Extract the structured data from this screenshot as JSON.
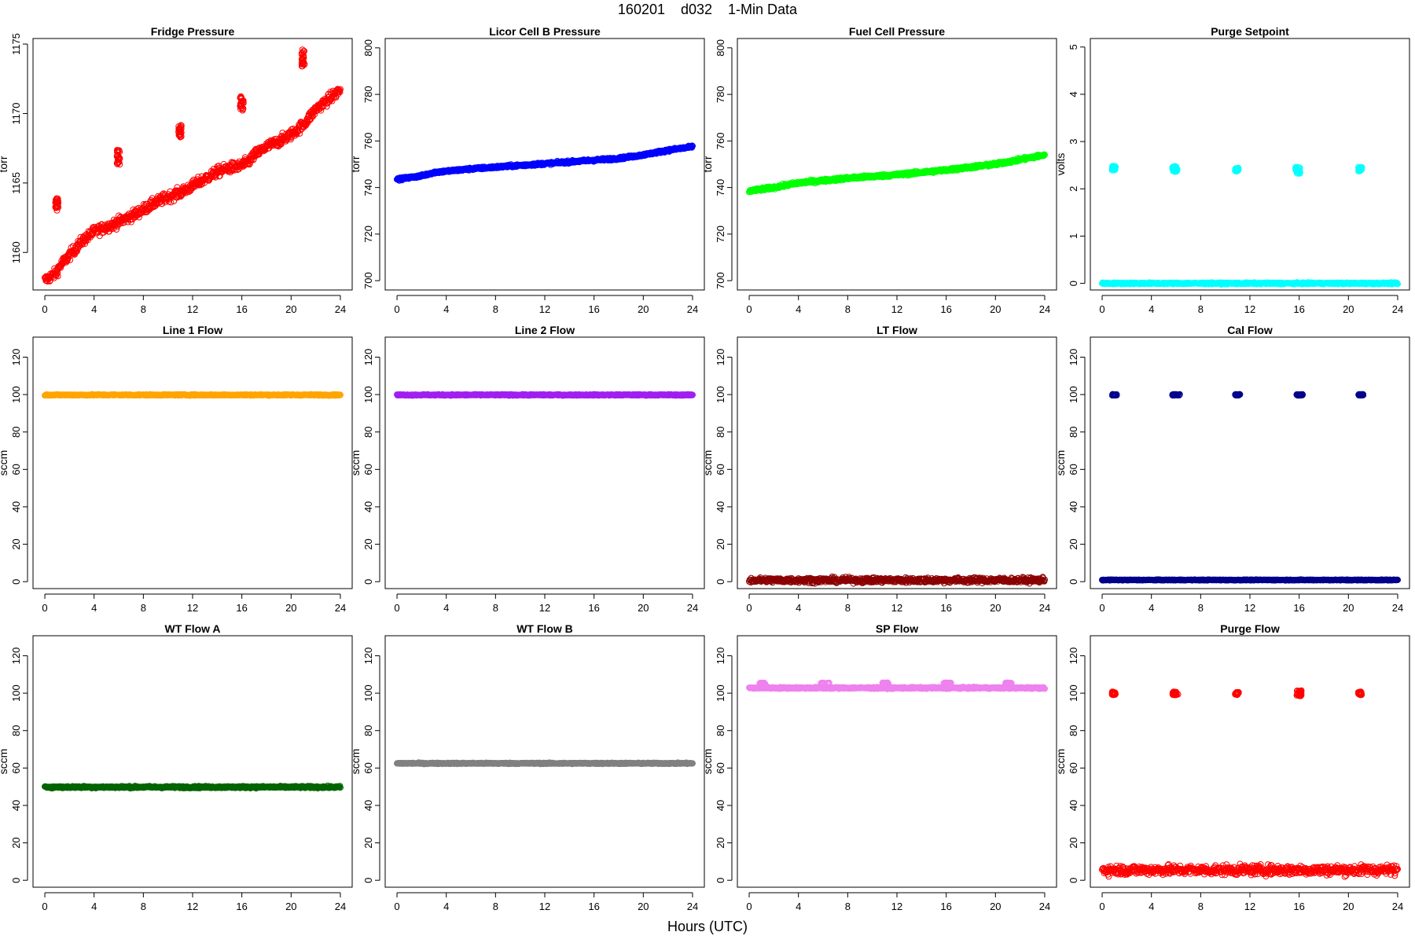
{
  "figure": {
    "title": "160201    d032    1-Min Data",
    "xlabel": "Hours (UTC)"
  },
  "chart_data": [
    {
      "type": "scatter",
      "title": "Fridge Pressure",
      "ylabel": "torr",
      "xlim": [
        -0.96,
        24.96
      ],
      "ylim": [
        1157.3,
        1175.4
      ],
      "xticks": [
        0,
        4,
        8,
        12,
        16,
        20,
        24
      ],
      "yticks": [
        1160,
        1165,
        1170,
        1175
      ],
      "color": "#ff0000",
      "marker": "open-circle",
      "series": [
        {
          "kind": "trend",
          "points": [
            [
              0,
              1158.0
            ],
            [
              0.9,
              1158.5
            ],
            [
              1.2,
              1159.0
            ],
            [
              2,
              1159.8
            ],
            [
              3,
              1160.8
            ],
            [
              4,
              1161.5
            ],
            [
              5.2,
              1161.9
            ],
            [
              6,
              1162.2
            ],
            [
              7,
              1162.6
            ],
            [
              8,
              1163.1
            ],
            [
              9,
              1163.6
            ],
            [
              10,
              1164.0
            ],
            [
              11,
              1164.3
            ],
            [
              12,
              1164.8
            ],
            [
              13,
              1165.3
            ],
            [
              14,
              1165.8
            ],
            [
              15,
              1166.1
            ],
            [
              15.8,
              1166.2
            ],
            [
              16.5,
              1166.5
            ],
            [
              17,
              1167.0
            ],
            [
              18,
              1167.6
            ],
            [
              19,
              1168.0
            ],
            [
              20,
              1168.5
            ],
            [
              21,
              1169.2
            ],
            [
              22,
              1170.3
            ],
            [
              23,
              1171.0
            ],
            [
              24,
              1171.7
            ]
          ],
          "spread": 0.35
        },
        {
          "kind": "cluster",
          "x": [
            0.85,
            1.1
          ],
          "y": [
            1163.0,
            1163.9
          ]
        },
        {
          "kind": "cluster",
          "x": [
            5.85,
            6.1
          ],
          "y": [
            1166.3,
            1167.4
          ]
        },
        {
          "kind": "cluster",
          "x": [
            10.85,
            11.1
          ],
          "y": [
            1168.3,
            1169.2
          ]
        },
        {
          "kind": "cluster",
          "x": [
            15.85,
            16.2
          ],
          "y": [
            1170.1,
            1171.3
          ]
        },
        {
          "kind": "cluster",
          "x": [
            20.85,
            21.1
          ],
          "y": [
            1173.4,
            1174.6
          ]
        }
      ]
    },
    {
      "type": "scatter",
      "title": "Licor Cell B Pressure",
      "ylabel": "torr",
      "xlim": [
        -0.96,
        24.96
      ],
      "ylim": [
        696,
        804
      ],
      "xticks": [
        0,
        4,
        8,
        12,
        16,
        20,
        24
      ],
      "yticks": [
        700,
        720,
        740,
        760,
        780,
        800
      ],
      "color": "#0000ff",
      "marker": "open-circle",
      "series": [
        {
          "kind": "trend",
          "points": [
            [
              0,
              743.5
            ],
            [
              2,
              745
            ],
            [
              3,
              746.5
            ],
            [
              6,
              748
            ],
            [
              10,
              749.5
            ],
            [
              14,
              751
            ],
            [
              18,
              752.5
            ],
            [
              20,
              754
            ],
            [
              22,
              756
            ],
            [
              24,
              757.5
            ]
          ],
          "spread": 0.5
        }
      ]
    },
    {
      "type": "scatter",
      "title": "Fuel Cell Pressure",
      "ylabel": "torr",
      "xlim": [
        -0.96,
        24.96
      ],
      "ylim": [
        696,
        804
      ],
      "xticks": [
        0,
        4,
        8,
        12,
        16,
        20,
        24
      ],
      "yticks": [
        700,
        720,
        740,
        760,
        780,
        800
      ],
      "color": "#00ff00",
      "marker": "open-circle",
      "series": [
        {
          "kind": "trend",
          "points": [
            [
              0,
              738.5
            ],
            [
              2,
              740
            ],
            [
              4,
              742
            ],
            [
              8,
              744
            ],
            [
              12,
              745.5
            ],
            [
              16,
              747.5
            ],
            [
              20,
              750
            ],
            [
              24,
              754
            ]
          ],
          "spread": 0.6
        }
      ]
    },
    {
      "type": "scatter",
      "title": "Purge Setpoint",
      "ylabel": "volts",
      "xlim": [
        -0.96,
        24.96
      ],
      "ylim": [
        -0.14,
        5.18
      ],
      "xticks": [
        0,
        4,
        8,
        12,
        16,
        20,
        24
      ],
      "yticks": [
        0,
        1,
        2,
        3,
        4,
        5
      ],
      "color": "#00ffff",
      "marker": "open-circle",
      "series": [
        {
          "kind": "band",
          "x": [
            0,
            24
          ],
          "y": 0,
          "spread": 0.015
        },
        {
          "kind": "cluster",
          "x": [
            0.8,
            1.1
          ],
          "y": [
            2.38,
            2.48
          ]
        },
        {
          "kind": "cluster",
          "x": [
            5.7,
            6.1
          ],
          "y": [
            2.35,
            2.48
          ]
        },
        {
          "kind": "cluster",
          "x": [
            10.8,
            11.1
          ],
          "y": [
            2.37,
            2.45
          ]
        },
        {
          "kind": "cluster",
          "x": [
            15.7,
            16.1
          ],
          "y": [
            2.32,
            2.46
          ]
        },
        {
          "kind": "cluster",
          "x": [
            20.8,
            21.1
          ],
          "y": [
            2.37,
            2.46
          ]
        }
      ]
    },
    {
      "type": "scatter",
      "title": "Line 1 Flow",
      "ylabel": "sccm",
      "xlim": [
        -0.96,
        24.96
      ],
      "ylim": [
        -3.7,
        130.7
      ],
      "xticks": [
        0,
        4,
        8,
        12,
        16,
        20,
        24
      ],
      "yticks": [
        0,
        20,
        40,
        60,
        80,
        100,
        120
      ],
      "color": "#ffa500",
      "marker": "open-circle",
      "series": [
        {
          "kind": "band",
          "x": [
            0,
            24
          ],
          "y": 99.8,
          "spread": 0.3
        }
      ]
    },
    {
      "type": "scatter",
      "title": "Line 2 Flow",
      "ylabel": "sccm",
      "xlim": [
        -0.96,
        24.96
      ],
      "ylim": [
        -3.7,
        130.7
      ],
      "xticks": [
        0,
        4,
        8,
        12,
        16,
        20,
        24
      ],
      "yticks": [
        0,
        20,
        40,
        60,
        80,
        100,
        120
      ],
      "color": "#a020f0",
      "marker": "open-circle",
      "series": [
        {
          "kind": "band",
          "x": [
            0,
            24
          ],
          "y": 99.8,
          "spread": 0.3
        }
      ]
    },
    {
      "type": "scatter",
      "title": "LT Flow",
      "ylabel": "sccm",
      "xlim": [
        -0.96,
        24.96
      ],
      "ylim": [
        -3.7,
        130.7
      ],
      "xticks": [
        0,
        4,
        8,
        12,
        16,
        20,
        24
      ],
      "yticks": [
        0,
        20,
        40,
        60,
        80,
        100,
        120
      ],
      "color": "#8b0000",
      "marker": "open-circle",
      "series": [
        {
          "kind": "band",
          "x": [
            0,
            24
          ],
          "y": 0.8,
          "spread": 1.3
        }
      ]
    },
    {
      "type": "scatter",
      "title": "Cal Flow",
      "ylabel": "sccm",
      "xlim": [
        -0.96,
        24.96
      ],
      "ylim": [
        -3.7,
        130.7
      ],
      "xticks": [
        0,
        4,
        8,
        12,
        16,
        20,
        24
      ],
      "yticks": [
        0,
        20,
        40,
        60,
        80,
        100,
        120
      ],
      "color": "#00008b",
      "marker": "open-circle",
      "series": [
        {
          "kind": "band",
          "x": [
            0,
            24
          ],
          "y": 0.9,
          "spread": 0.2
        },
        {
          "kind": "cluster",
          "x": [
            0.8,
            1.2
          ],
          "y": [
            99.5,
            100.2
          ]
        },
        {
          "kind": "cluster",
          "x": [
            5.7,
            6.3
          ],
          "y": [
            99.5,
            100.2
          ]
        },
        {
          "kind": "cluster",
          "x": [
            10.8,
            11.2
          ],
          "y": [
            99.5,
            100.2
          ]
        },
        {
          "kind": "cluster",
          "x": [
            15.8,
            16.3
          ],
          "y": [
            99.5,
            100.2
          ]
        },
        {
          "kind": "cluster",
          "x": [
            20.8,
            21.2
          ],
          "y": [
            99.5,
            100.2
          ]
        }
      ]
    },
    {
      "type": "scatter",
      "title": "WT Flow A",
      "ylabel": "sccm",
      "xlim": [
        -0.96,
        24.96
      ],
      "ylim": [
        -3.7,
        130.7
      ],
      "xticks": [
        0,
        4,
        8,
        12,
        16,
        20,
        24
      ],
      "yticks": [
        0,
        20,
        40,
        60,
        80,
        100,
        120
      ],
      "color": "#006400",
      "marker": "open-circle",
      "series": [
        {
          "kind": "band",
          "x": [
            0,
            24
          ],
          "y": 49.8,
          "spread": 0.5
        }
      ]
    },
    {
      "type": "scatter",
      "title": "WT Flow B",
      "ylabel": "sccm",
      "xlim": [
        -0.96,
        24.96
      ],
      "ylim": [
        -3.7,
        130.7
      ],
      "xticks": [
        0,
        4,
        8,
        12,
        16,
        20,
        24
      ],
      "yticks": [
        0,
        20,
        40,
        60,
        80,
        100,
        120
      ],
      "color": "#808080",
      "marker": "open-circle",
      "series": [
        {
          "kind": "band",
          "x": [
            0,
            24
          ],
          "y": 62.5,
          "spread": 0.3
        }
      ]
    },
    {
      "type": "scatter",
      "title": "SP Flow",
      "ylabel": "sccm",
      "xlim": [
        -0.96,
        24.96
      ],
      "ylim": [
        -3.7,
        130.7
      ],
      "xticks": [
        0,
        4,
        8,
        12,
        16,
        20,
        24
      ],
      "yticks": [
        0,
        20,
        40,
        60,
        80,
        100,
        120
      ],
      "color": "#ee82ee",
      "marker": "open-circle",
      "series": [
        {
          "kind": "band",
          "x": [
            0,
            24
          ],
          "y": 102.8,
          "spread": 0.4
        },
        {
          "kind": "cluster",
          "x": [
            0.8,
            1.3
          ],
          "y": [
            104.8,
            105.6
          ]
        },
        {
          "kind": "cluster",
          "x": [
            5.8,
            6.5
          ],
          "y": [
            104.8,
            105.6
          ]
        },
        {
          "kind": "cluster",
          "x": [
            10.8,
            11.3
          ],
          "y": [
            104.8,
            105.6
          ]
        },
        {
          "kind": "cluster",
          "x": [
            15.8,
            16.4
          ],
          "y": [
            104.8,
            105.6
          ]
        },
        {
          "kind": "cluster",
          "x": [
            20.8,
            21.3
          ],
          "y": [
            104.8,
            105.6
          ]
        }
      ]
    },
    {
      "type": "scatter",
      "title": "Purge Flow",
      "ylabel": "sccm",
      "xlim": [
        -0.96,
        24.96
      ],
      "ylim": [
        -3.7,
        130.7
      ],
      "xticks": [
        0,
        4,
        8,
        12,
        16,
        20,
        24
      ],
      "yticks": [
        0,
        20,
        40,
        60,
        80,
        100,
        120
      ],
      "color": "#ff0000",
      "marker": "open-circle",
      "series": [
        {
          "kind": "band",
          "x": [
            0,
            24
          ],
          "y": 5.5,
          "spread": 2.5
        },
        {
          "kind": "cluster",
          "x": [
            0.8,
            1.1
          ],
          "y": [
            99.0,
            100.8
          ]
        },
        {
          "kind": "cluster",
          "x": [
            5.7,
            6.2
          ],
          "y": [
            99.0,
            100.8
          ]
        },
        {
          "kind": "cluster",
          "x": [
            10.8,
            11.1
          ],
          "y": [
            99.0,
            100.8
          ]
        },
        {
          "kind": "cluster",
          "x": [
            15.8,
            16.2
          ],
          "y": [
            98.5,
            101.5
          ]
        },
        {
          "kind": "cluster",
          "x": [
            20.8,
            21.1
          ],
          "y": [
            99.0,
            100.8
          ]
        }
      ]
    }
  ]
}
